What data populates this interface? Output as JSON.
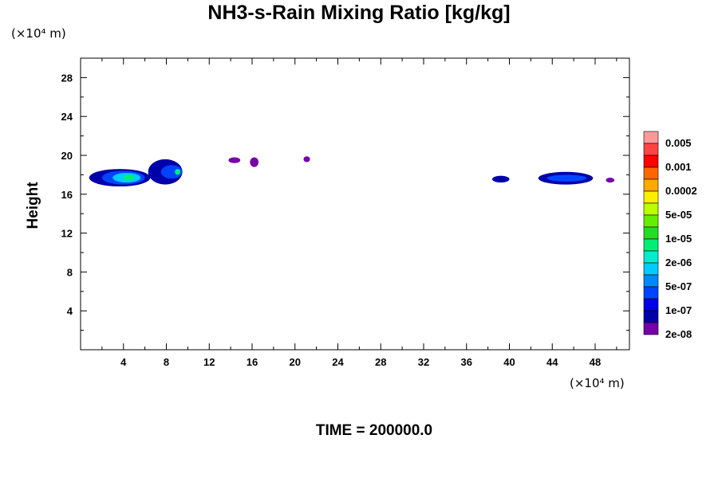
{
  "chart_data": {
    "type": "heatmap",
    "title": "NH3-s-Rain Mixing Ratio [kg/kg]",
    "ylabel": "Height",
    "x_unit_label": "(×10⁴ m)",
    "y_unit_label": "(×10⁴ m)",
    "time_label": "TIME = 200000.0",
    "xlim": [
      0,
      51.2
    ],
    "ylim": [
      0,
      30
    ],
    "x_ticks": [
      "4",
      "8",
      "12",
      "16",
      "20",
      "24",
      "28",
      "32",
      "36",
      "40",
      "44",
      "48"
    ],
    "y_ticks": [
      "4",
      "8",
      "12",
      "16",
      "20",
      "24",
      "28"
    ],
    "colorbar": {
      "labels": [
        "0.005",
        "0.001",
        "0.0002",
        "5e-05",
        "1e-05",
        "2e-06",
        "5e-07",
        "1e-07",
        "2e-08"
      ],
      "colors": [
        "#ff9999",
        "#ff4444",
        "#ff0000",
        "#ff6600",
        "#ffaa00",
        "#ffee00",
        "#bbff00",
        "#66ee00",
        "#22dd22",
        "#00ee77",
        "#00eecc",
        "#00ccff",
        "#0088ff",
        "#0044ff",
        "#0000ee",
        "#0000aa",
        "#7700aa"
      ]
    },
    "regions": [
      {
        "x": 0.8,
        "x2": 6.5,
        "y": 16.8,
        "y2": 18.6,
        "level": "1e-07"
      },
      {
        "x": 2.0,
        "x2": 6.0,
        "y": 17.0,
        "y2": 18.4,
        "level": "5e-07"
      },
      {
        "x": 3.0,
        "x2": 5.6,
        "y": 17.2,
        "y2": 18.2,
        "level": "2e-06"
      },
      {
        "x": 4.0,
        "x2": 5.0,
        "y": 17.4,
        "y2": 18.0,
        "level": "1e-05"
      },
      {
        "x": 6.3,
        "x2": 9.5,
        "y": 17.0,
        "y2": 19.6,
        "level": "1e-07"
      },
      {
        "x": 7.5,
        "x2": 9.5,
        "y": 17.6,
        "y2": 19.0,
        "level": "5e-07"
      },
      {
        "x": 8.8,
        "x2": 9.3,
        "y": 18.0,
        "y2": 18.6,
        "level": "1e-05"
      },
      {
        "x": 13.8,
        "x2": 14.9,
        "y": 19.2,
        "y2": 19.8,
        "level": "2e-08"
      },
      {
        "x": 15.8,
        "x2": 16.6,
        "y": 18.8,
        "y2": 19.8,
        "level": "2e-08"
      },
      {
        "x": 20.8,
        "x2": 21.4,
        "y": 19.3,
        "y2": 19.9,
        "level": "2e-08"
      },
      {
        "x": 38.4,
        "x2": 40.0,
        "y": 17.2,
        "y2": 17.9,
        "level": "1e-07"
      },
      {
        "x": 42.7,
        "x2": 47.8,
        "y": 17.0,
        "y2": 18.3,
        "level": "1e-07"
      },
      {
        "x": 43.5,
        "x2": 47.2,
        "y": 17.3,
        "y2": 18.0,
        "level": "5e-07"
      },
      {
        "x": 49.0,
        "x2": 49.8,
        "y": 17.2,
        "y2": 17.7,
        "level": "2e-08"
      }
    ]
  }
}
